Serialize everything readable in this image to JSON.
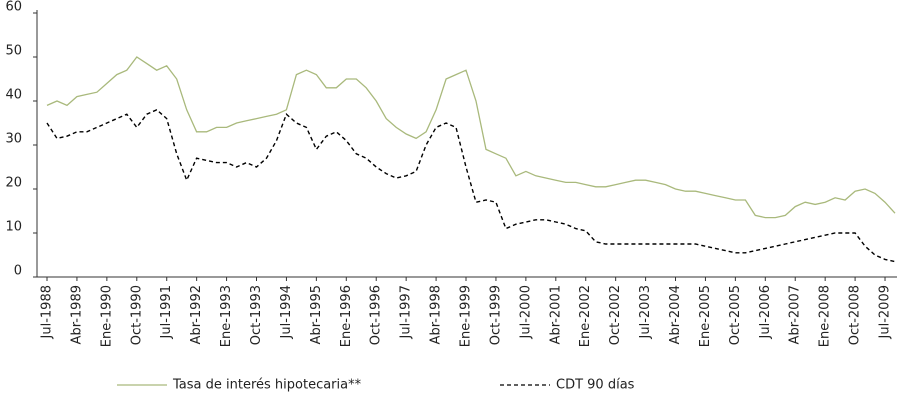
{
  "chart_data": {
    "type": "line",
    "categories": [
      "Jul-1988",
      null,
      null,
      "Abr-1989",
      null,
      null,
      "Ene-1990",
      null,
      null,
      "Oct-1990",
      null,
      null,
      "Jul-1991",
      null,
      null,
      "Abr-1992",
      null,
      null,
      "Ene-1993",
      null,
      null,
      "Oct-1993",
      null,
      null,
      "Jul-1994",
      null,
      null,
      "Abr-1995",
      null,
      null,
      "Ene-1996",
      null,
      null,
      "Oct-1996",
      null,
      null,
      "Jul-1997",
      null,
      null,
      "Abr-1998",
      null,
      null,
      "Ene-1999",
      null,
      null,
      "Oct-1999",
      null,
      null,
      "Jul-2000",
      null,
      null,
      "Abr-2001",
      null,
      null,
      "Ene-2002",
      null,
      null,
      "Oct-2002",
      null,
      null,
      "Jul-2003",
      null,
      null,
      "Abr-2004",
      null,
      null,
      "Ene-2005",
      null,
      null,
      "Oct-2005",
      null,
      null,
      "Jul-2006",
      null,
      null,
      "Abr-2007",
      null,
      null,
      "Ene-2008",
      null,
      null,
      "Oct-2008",
      null,
      null,
      "Jul-2009",
      null
    ],
    "series": [
      {
        "name": "Tasa de interés hipotecaria**",
        "color": "#a9b97c",
        "style": "solid",
        "values": [
          39,
          40,
          39,
          41,
          41.5,
          42,
          44,
          46,
          47,
          50,
          48.5,
          47,
          48,
          45,
          38,
          33,
          33,
          34,
          34,
          35,
          35.5,
          36,
          36.5,
          37,
          38,
          46,
          47,
          46,
          43,
          43,
          45,
          45,
          43,
          40,
          36,
          34,
          32.5,
          31.5,
          33,
          38,
          45,
          46,
          47,
          40,
          29,
          28,
          27,
          23,
          24,
          23,
          22.5,
          22,
          21.5,
          21.5,
          21,
          20.5,
          20.5,
          21,
          21.5,
          22,
          22,
          21.5,
          21,
          20,
          19.5,
          19.5,
          19,
          18.5,
          18,
          17.5,
          17.5,
          14,
          13.5,
          13.5,
          14,
          16,
          17,
          16.5,
          17,
          18,
          17.5,
          19.5,
          20,
          19,
          17,
          14.5
        ]
      },
      {
        "name": "CDT 90 días",
        "color": "#000000",
        "style": "dashed",
        "values": [
          35,
          31.5,
          32,
          33,
          33,
          34,
          35,
          36,
          37,
          34,
          37,
          38,
          36,
          28,
          22,
          27,
          26.5,
          26,
          26,
          25,
          26,
          25,
          27,
          31,
          37,
          35,
          34,
          29,
          32,
          33,
          31,
          28,
          27,
          25,
          23.5,
          22.5,
          23,
          24,
          30,
          34,
          35,
          34,
          25,
          17,
          17.5,
          17,
          11,
          12,
          12.5,
          13,
          13,
          12.5,
          12,
          11,
          10.5,
          8,
          7.5,
          7.5,
          7.5,
          7.5,
          7.5,
          7.5,
          7.5,
          7.5,
          7.5,
          7.5,
          7,
          6.5,
          6,
          5.5,
          5.5,
          6,
          6.5,
          7,
          7.5,
          8,
          8.5,
          9,
          9.5,
          10,
          10,
          10,
          7,
          5,
          4,
          3.5
        ]
      }
    ],
    "ylim": [
      0,
      60
    ],
    "yticks": [
      0,
      10,
      20,
      30,
      40,
      50,
      60
    ],
    "grid": false
  }
}
